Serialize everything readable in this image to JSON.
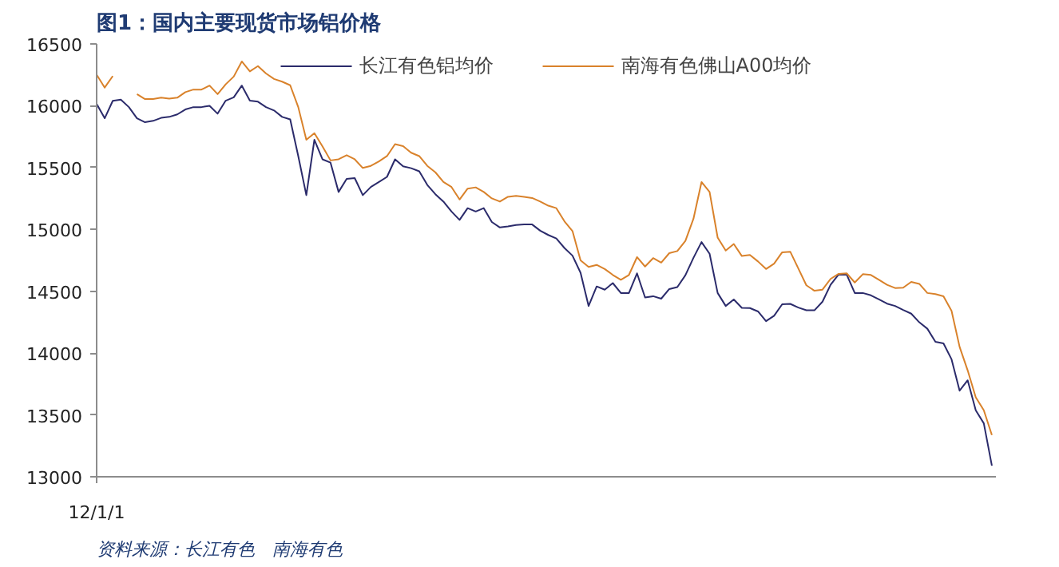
{
  "chart_data": {
    "type": "line",
    "title": "图1：国内主要现货市场铝价格",
    "annotations": [
      "资料来源：长江有色　南海有色"
    ],
    "categories": [
      "12/1/1",
      null,
      null,
      null,
      null,
      null,
      null,
      null,
      null,
      null,
      null,
      null,
      null,
      null,
      null,
      null,
      null,
      null,
      null,
      null,
      null,
      null,
      null,
      null,
      null,
      null,
      null,
      null,
      null,
      null,
      null,
      null,
      null,
      null,
      null,
      null,
      null,
      null,
      null,
      null,
      null,
      null,
      null,
      null,
      null,
      null,
      null,
      null,
      null,
      null,
      null,
      null,
      null,
      null,
      null,
      null,
      null,
      null,
      null,
      null,
      null,
      null,
      null,
      null,
      null,
      null,
      null,
      null,
      null,
      null,
      null,
      null,
      null,
      null,
      null,
      null,
      null,
      null,
      null,
      null,
      null,
      null,
      null,
      null,
      null,
      null,
      null,
      null,
      null,
      null,
      null,
      null,
      null,
      null,
      null,
      null,
      null,
      null,
      null,
      null,
      null,
      null,
      null,
      null,
      null,
      null,
      null,
      null,
      null,
      null,
      null,
      null
    ],
    "ylim": [
      13000,
      16500
    ],
    "yticks": [
      13000,
      13500,
      14000,
      14500,
      15000,
      15500,
      16000,
      16500
    ],
    "legend": "top",
    "line_style": "solid",
    "series": [
      {
        "name": "长江有色铝均价",
        "color": "#2b2b6b",
        "values": [
          16015,
          15899,
          16040,
          16050,
          15989,
          15899,
          15867,
          15878,
          15902,
          15910,
          15930,
          15970,
          15989,
          15989,
          16000,
          15936,
          16041,
          16068,
          16163,
          16041,
          16033,
          15989,
          15962,
          15910,
          15890,
          15593,
          15277,
          15725,
          15567,
          15540,
          15303,
          15409,
          15415,
          15277,
          15343,
          15383,
          15425,
          15567,
          15510,
          15495,
          15470,
          15360,
          15285,
          15225,
          15145,
          15077,
          15172,
          15145,
          15172,
          15060,
          15016,
          15024,
          15036,
          15040,
          15040,
          14990,
          14955,
          14927,
          14850,
          14788,
          14650,
          14381,
          14539,
          14513,
          14566,
          14486,
          14486,
          14645,
          14450,
          14460,
          14440,
          14518,
          14534,
          14630,
          14770,
          14898,
          14803,
          14486,
          14381,
          14434,
          14366,
          14364,
          14337,
          14258,
          14302,
          14395,
          14398,
          14368,
          14346,
          14346,
          14416,
          14552,
          14636,
          14634,
          14486,
          14486,
          14467,
          14434,
          14400,
          14381,
          14349,
          14319,
          14249,
          14197,
          14091,
          14078,
          13950,
          13696,
          13780,
          13538,
          13432,
          13090
        ]
      },
      {
        "name": "南海有色佛山A00均价",
        "color": "#d9822b",
        "values": [
          16252,
          16147,
          16240,
          null,
          null,
          16094,
          16054,
          16055,
          16065,
          16057,
          16065,
          16110,
          16131,
          16131,
          16163,
          16094,
          16173,
          16236,
          16358,
          16278,
          16321,
          16261,
          16217,
          16195,
          16166,
          15989,
          15725,
          15778,
          15672,
          15558,
          15567,
          15600,
          15567,
          15497,
          15514,
          15550,
          15593,
          15690,
          15673,
          15620,
          15593,
          15514,
          15462,
          15383,
          15343,
          15242,
          15330,
          15340,
          15303,
          15251,
          15225,
          15264,
          15272,
          15263,
          15254,
          15225,
          15192,
          15172,
          15066,
          14987,
          14750,
          14697,
          14713,
          14680,
          14632,
          14592,
          14632,
          14776,
          14700,
          14768,
          14732,
          14808,
          14825,
          14908,
          15086,
          15383,
          15303,
          14934,
          14829,
          14882,
          14785,
          14794,
          14741,
          14680,
          14723,
          14815,
          14820,
          14685,
          14548,
          14504,
          14513,
          14600,
          14641,
          14645,
          14571,
          14638,
          14632,
          14592,
          14552,
          14526,
          14529,
          14576,
          14560,
          14486,
          14477,
          14460,
          14342,
          14050,
          13860,
          13643,
          13538,
          13337
        ]
      }
    ]
  }
}
